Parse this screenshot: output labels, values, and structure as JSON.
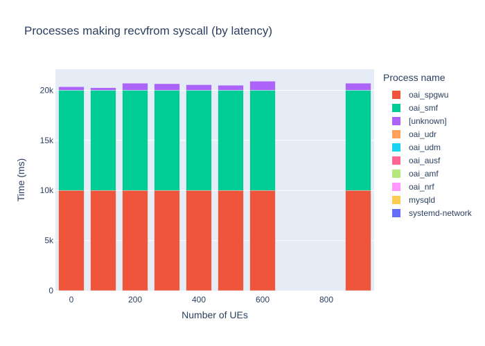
{
  "chart_data": {
    "type": "bar",
    "barmode": "stack",
    "title": "Processes making recvfrom syscall (by latency)",
    "xlabel": "Number of UEs",
    "ylabel": "Time (ms)",
    "legend_title": "Process name",
    "legend_position": "right",
    "grid": true,
    "x": [
      0,
      100,
      200,
      300,
      400,
      500,
      600,
      900
    ],
    "xlim": [
      -50,
      950
    ],
    "ylim": [
      0,
      22100
    ],
    "x_ticks": [
      0,
      200,
      400,
      600,
      800
    ],
    "x_tick_labels": [
      "0",
      "200",
      "400",
      "600",
      "800"
    ],
    "y_ticks": [
      0,
      5000,
      10000,
      15000,
      20000
    ],
    "y_tick_labels": [
      "0",
      "5k",
      "10k",
      "15k",
      "20k"
    ],
    "series": [
      {
        "name": "oai_spgwu",
        "color": "#EF553B",
        "values": [
          10000,
          10000,
          10000,
          10000,
          10000,
          10000,
          10000,
          10000
        ]
      },
      {
        "name": "oai_smf",
        "color": "#00CC96",
        "values": [
          10000,
          10000,
          10000,
          10000,
          10000,
          10000,
          10000,
          10000
        ]
      },
      {
        "name": "[unknown]",
        "color": "#AB63FA",
        "values": [
          350,
          250,
          700,
          650,
          550,
          500,
          900,
          700
        ]
      },
      {
        "name": "oai_udr",
        "color": "#FFA15A",
        "values": [
          0,
          0,
          0,
          0,
          0,
          0,
          0,
          0
        ]
      },
      {
        "name": "oai_udm",
        "color": "#19D3F3",
        "values": [
          0,
          0,
          0,
          0,
          0,
          0,
          0,
          0
        ]
      },
      {
        "name": "oai_ausf",
        "color": "#FF6692",
        "values": [
          0,
          0,
          0,
          0,
          0,
          0,
          0,
          0
        ]
      },
      {
        "name": "oai_amf",
        "color": "#B6E880",
        "values": [
          0,
          0,
          0,
          0,
          0,
          0,
          0,
          0
        ]
      },
      {
        "name": "oai_nrf",
        "color": "#FF97FF",
        "values": [
          0,
          0,
          0,
          0,
          0,
          0,
          0,
          0
        ]
      },
      {
        "name": "mysqld",
        "color": "#FECB52",
        "values": [
          0,
          0,
          0,
          0,
          0,
          0,
          0,
          0
        ]
      },
      {
        "name": "systemd-network",
        "color": "#636EFA",
        "values": [
          0,
          0,
          0,
          0,
          0,
          0,
          0,
          0
        ]
      }
    ]
  }
}
